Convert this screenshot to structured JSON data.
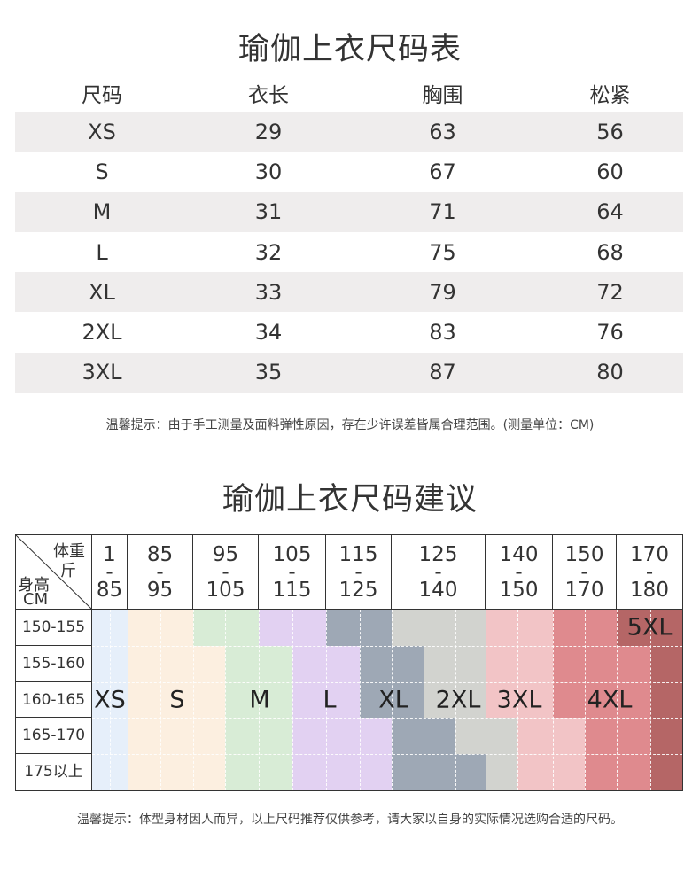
{
  "chart1": {
    "title": "瑜伽上衣尺码表",
    "headers": [
      "尺码",
      "衣长",
      "胸围",
      "松紧"
    ],
    "rows": [
      [
        "XS",
        "29",
        "63",
        "56"
      ],
      [
        "S",
        "30",
        "67",
        "60"
      ],
      [
        "M",
        "31",
        "71",
        "64"
      ],
      [
        "L",
        "32",
        "75",
        "68"
      ],
      [
        "XL",
        "33",
        "79",
        "72"
      ],
      [
        "2XL",
        "34",
        "83",
        "76"
      ],
      [
        "3XL",
        "35",
        "87",
        "80"
      ]
    ],
    "note": "温馨提示：由于手工测量及面料弹性原因，存在少许误差皆属合理范围。(测量单位：CM)"
  },
  "chart2": {
    "title": "瑜伽上衣尺码建议",
    "corner": {
      "weight": "体重",
      "jin": "斤",
      "height": "身高",
      "cm": "CM"
    },
    "weight_ranges": [
      [
        "1",
        "-",
        "85"
      ],
      [
        "85",
        "-",
        "95"
      ],
      [
        "95",
        "-",
        "105"
      ],
      [
        "105",
        "-",
        "115"
      ],
      [
        "115",
        "-",
        "125"
      ],
      [
        "125",
        "-",
        "140"
      ],
      [
        "140",
        "-",
        "150"
      ],
      [
        "150",
        "-",
        "170"
      ],
      [
        "170",
        "-",
        "180"
      ]
    ],
    "height_ranges": [
      "150-155",
      "155-160",
      "160-165",
      "165-170",
      "175以上"
    ],
    "sizes": [
      {
        "label": "XS",
        "color": "#e6effa"
      },
      {
        "label": "S",
        "color": "#fcefe0"
      },
      {
        "label": "M",
        "color": "#d8ecd6"
      },
      {
        "label": "L",
        "color": "#e2d1f2"
      },
      {
        "label": "XL",
        "color": "#9ea8b5"
      },
      {
        "label": "2XL",
        "color": "#d2d3cf"
      },
      {
        "label": "3XL",
        "color": "#f2c4c6"
      },
      {
        "label": "4XL",
        "color": "#df8a8e"
      },
      {
        "label": "5XL",
        "color": "#b56666"
      }
    ],
    "note": "温馨提示：体型身材因人而异，以上尺码推荐仅供参考，请大家以自身的实际情况选购合适的尺码。"
  }
}
